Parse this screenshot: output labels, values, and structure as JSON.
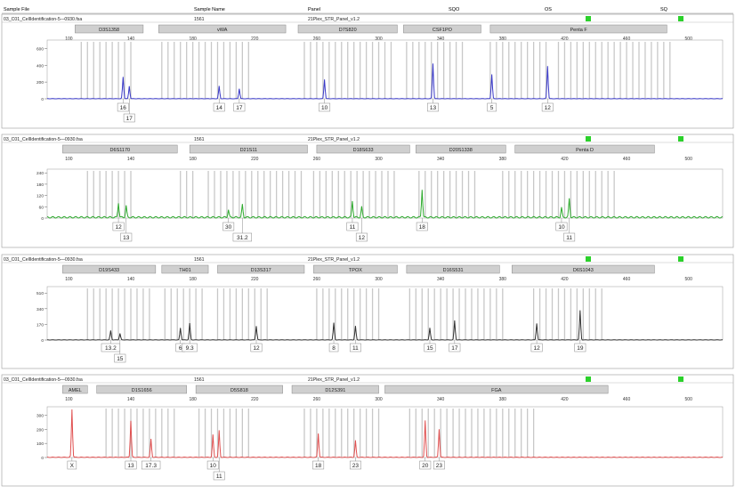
{
  "header": {
    "cols": [
      "Sample File",
      "Sample Name",
      "Panel",
      "SQO",
      "OS",
      "SQ"
    ],
    "status_colors": [
      "#2bd12b",
      "#2bd12b"
    ]
  },
  "colors": {
    "blue": "#3a3ac8",
    "green": "#2eaa2e",
    "black": "#333333",
    "red": "#e05050",
    "bin": "#c8c8c8",
    "marker_fill": "#cfcfcf"
  },
  "chart_data": [
    {
      "type": "line",
      "dye": "blue",
      "file": "03_C01_CellIdentification-5-–0930.fsa",
      "sample_name": "1561",
      "panel": "21Plex_STR_Panel_v1.2",
      "x_ticks": [
        100,
        140,
        180,
        220,
        260,
        300,
        340,
        380,
        420,
        460,
        500
      ],
      "ylim": [
        0,
        700
      ],
      "y_ticks": [
        0,
        200,
        400,
        600
      ],
      "markers": [
        {
          "name": "D3S1358",
          "from": 104,
          "to": 148
        },
        {
          "name": "vWA",
          "from": 158,
          "to": 240
        },
        {
          "name": "D7S820",
          "from": 248,
          "to": 312
        },
        {
          "name": "CSF1PO",
          "from": 316,
          "to": 366
        },
        {
          "name": "Penta F",
          "from": 372,
          "to": 486
        }
      ],
      "bins": [
        [
          108,
          142
        ],
        [
          160,
          218
        ],
        [
          252,
          310
        ],
        [
          318,
          355
        ],
        [
          372,
          410
        ],
        [
          416,
          488
        ]
      ],
      "peaks": [
        {
          "x": 135,
          "h": 260,
          "label": "16"
        },
        {
          "x": 139,
          "h": 150,
          "label": "17"
        },
        {
          "x": 197,
          "h": 150,
          "label": "14"
        },
        {
          "x": 210,
          "h": 120,
          "label": "17"
        },
        {
          "x": 265,
          "h": 230,
          "label": "10"
        },
        {
          "x": 335,
          "h": 420,
          "label": "13"
        },
        {
          "x": 373,
          "h": 290,
          "label": "5"
        },
        {
          "x": 409,
          "h": 390,
          "label": "12"
        }
      ],
      "labels_order": [
        "16",
        "17",
        "14",
        "17",
        "10",
        "13",
        "5",
        "12"
      ],
      "label_rows": [
        0,
        1,
        0,
        0,
        0,
        0,
        0,
        0
      ]
    },
    {
      "type": "line",
      "dye": "green",
      "file": "03_C01_CellIdentification-5—0930.fsa",
      "sample_name": "1561",
      "panel": "21Plex_STR_Panel_v1.2",
      "x_ticks": [
        100,
        140,
        180,
        220,
        260,
        300,
        340,
        380,
        420,
        460,
        500
      ],
      "ylim": [
        0,
        260
      ],
      "y_ticks": [
        0,
        60,
        120,
        180,
        240
      ],
      "markers": [
        {
          "name": "D6S1170",
          "from": 96,
          "to": 170
        },
        {
          "name": "D21S11",
          "from": 178,
          "to": 254
        },
        {
          "name": "D18S633",
          "from": 260,
          "to": 320
        },
        {
          "name": "D20S1338",
          "from": 324,
          "to": 382
        },
        {
          "name": "Penta D",
          "from": 388,
          "to": 478
        }
      ],
      "bins": [
        [
          112,
          142
        ],
        [
          172,
          180
        ],
        [
          190,
          252
        ],
        [
          258,
          312
        ],
        [
          326,
          362
        ],
        [
          380,
          418
        ],
        [
          420,
          452
        ]
      ],
      "peaks": [
        {
          "x": 132,
          "h": 78,
          "label": "12"
        },
        {
          "x": 137,
          "h": 62,
          "label": "13"
        },
        {
          "x": 203,
          "h": 42,
          "label": "30"
        },
        {
          "x": 212,
          "h": 68,
          "label": "31.2"
        },
        {
          "x": 283,
          "h": 88,
          "label": "11"
        },
        {
          "x": 289,
          "h": 55,
          "label": "12"
        },
        {
          "x": 328,
          "h": 150,
          "label": "18"
        },
        {
          "x": 418,
          "h": 52,
          "label": "10"
        },
        {
          "x": 423,
          "h": 100,
          "label": "11"
        }
      ],
      "labels_order": [
        "12",
        "13",
        "30",
        "31.2",
        "11",
        "12",
        "18",
        "10",
        "11"
      ],
      "label_rows": [
        0,
        1,
        0,
        1,
        0,
        1,
        0,
        0,
        1
      ]
    },
    {
      "type": "line",
      "dye": "black",
      "file": "03_C01_CellIdentification-5—0930.fsa",
      "sample_name": "1561",
      "panel": "21Plex_STR_Panel_v1.2",
      "x_ticks": [
        100,
        140,
        180,
        220,
        260,
        300,
        340,
        380,
        420,
        460,
        500
      ],
      "ylim": [
        0,
        580
      ],
      "y_ticks": [
        0,
        170,
        340,
        510
      ],
      "markers": [
        {
          "name": "D19S433",
          "from": 96,
          "to": 156
        },
        {
          "name": "TH01",
          "from": 160,
          "to": 190
        },
        {
          "name": "D13S317",
          "from": 196,
          "to": 252
        },
        {
          "name": "TPOX",
          "from": 258,
          "to": 312
        },
        {
          "name": "D16S531",
          "from": 318,
          "to": 378
        },
        {
          "name": "D6S1043",
          "from": 386,
          "to": 478
        }
      ],
      "bins": [
        [
          112,
          152
        ],
        [
          162,
          188
        ],
        [
          196,
          230
        ],
        [
          260,
          300
        ],
        [
          320,
          380
        ],
        [
          400,
          446
        ]
      ],
      "peaks": [
        {
          "x": 127,
          "h": 100,
          "label": "13.2"
        },
        {
          "x": 133,
          "h": 70,
          "label": "15"
        },
        {
          "x": 172,
          "h": 130,
          "label": "6"
        },
        {
          "x": 178,
          "h": 180,
          "label": "9.3"
        },
        {
          "x": 221,
          "h": 150,
          "label": "12"
        },
        {
          "x": 271,
          "h": 185,
          "label": "8"
        },
        {
          "x": 285,
          "h": 150,
          "label": "11"
        },
        {
          "x": 333,
          "h": 130,
          "label": "15"
        },
        {
          "x": 349,
          "h": 210,
          "label": "17"
        },
        {
          "x": 402,
          "h": 180,
          "label": "12"
        },
        {
          "x": 430,
          "h": 320,
          "label": "19"
        }
      ],
      "labels_order": [
        "13.2",
        "15",
        "6",
        "9.3",
        "12",
        "8",
        "11",
        "15",
        "17",
        "12",
        "19"
      ],
      "label_rows": [
        0,
        1,
        0,
        0,
        0,
        0,
        0,
        0,
        0,
        0,
        0
      ]
    },
    {
      "type": "line",
      "dye": "red",
      "file": "03_C01_CellIdentification-5—0930.fsa",
      "sample_name": "1561",
      "panel": "21Plex_STR_Panel_v1.2",
      "x_ticks": [
        100,
        140,
        180,
        220,
        260,
        300,
        340,
        380,
        420,
        460,
        500
      ],
      "ylim": [
        0,
        360
      ],
      "y_ticks": [
        0,
        100,
        200,
        300
      ],
      "markers": [
        {
          "name": "AMEL",
          "from": 96,
          "to": 112
        },
        {
          "name": "D1S1656",
          "from": 118,
          "to": 176
        },
        {
          "name": "D5S818",
          "from": 182,
          "to": 238
        },
        {
          "name": "D12S391",
          "from": 244,
          "to": 300
        },
        {
          "name": "FGA",
          "from": 304,
          "to": 448
        }
      ],
      "bins": [
        [
          124,
          168
        ],
        [
          184,
          218
        ],
        [
          252,
          300
        ],
        [
          320,
          350
        ],
        [
          352,
          400
        ]
      ],
      "peaks": [
        {
          "x": 102,
          "h": 340,
          "label": "X"
        },
        {
          "x": 140,
          "h": 260,
          "label": "13"
        },
        {
          "x": 153,
          "h": 130,
          "label": "17.3"
        },
        {
          "x": 193,
          "h": 160,
          "label": "10"
        },
        {
          "x": 197,
          "h": 190,
          "label": "11"
        },
        {
          "x": 261,
          "h": 170,
          "label": "18"
        },
        {
          "x": 285,
          "h": 120,
          "label": "23"
        },
        {
          "x": 330,
          "h": 260,
          "label": "20"
        },
        {
          "x": 339,
          "h": 200,
          "label": "23"
        }
      ],
      "labels_order": [
        "X",
        "13",
        "17.3",
        "10",
        "11",
        "18",
        "23",
        "20",
        "23"
      ],
      "label_rows": [
        0,
        0,
        0,
        0,
        1,
        0,
        0,
        0,
        0
      ]
    }
  ]
}
